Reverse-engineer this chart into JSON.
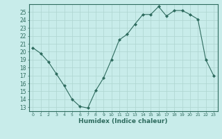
{
  "x": [
    0,
    1,
    2,
    3,
    4,
    5,
    6,
    7,
    8,
    9,
    10,
    11,
    12,
    13,
    14,
    15,
    16,
    17,
    18,
    19,
    20,
    21,
    22,
    23
  ],
  "y": [
    20.5,
    19.8,
    18.7,
    17.2,
    15.7,
    14.0,
    13.1,
    12.9,
    15.1,
    16.7,
    19.0,
    21.5,
    22.2,
    23.5,
    24.7,
    24.7,
    25.7,
    24.5,
    25.2,
    25.2,
    24.7,
    24.1,
    19.0,
    17.0
  ],
  "line_color": "#2e6b5e",
  "marker": "D",
  "marker_size": 2,
  "bg_color": "#c8ecea",
  "grid_color": "#aed4d0",
  "xlabel": "Humidex (Indice chaleur)",
  "xlim": [
    -0.5,
    23.5
  ],
  "ylim": [
    12.5,
    26.0
  ],
  "yticks": [
    13,
    14,
    15,
    16,
    17,
    18,
    19,
    20,
    21,
    22,
    23,
    24,
    25
  ],
  "xticks": [
    0,
    1,
    2,
    3,
    4,
    5,
    6,
    7,
    8,
    9,
    10,
    11,
    12,
    13,
    14,
    15,
    16,
    17,
    18,
    19,
    20,
    21,
    22,
    23
  ],
  "tick_color": "#2e6b5e",
  "label_color": "#2e6b5e",
  "spine_color": "#2e6b5e"
}
